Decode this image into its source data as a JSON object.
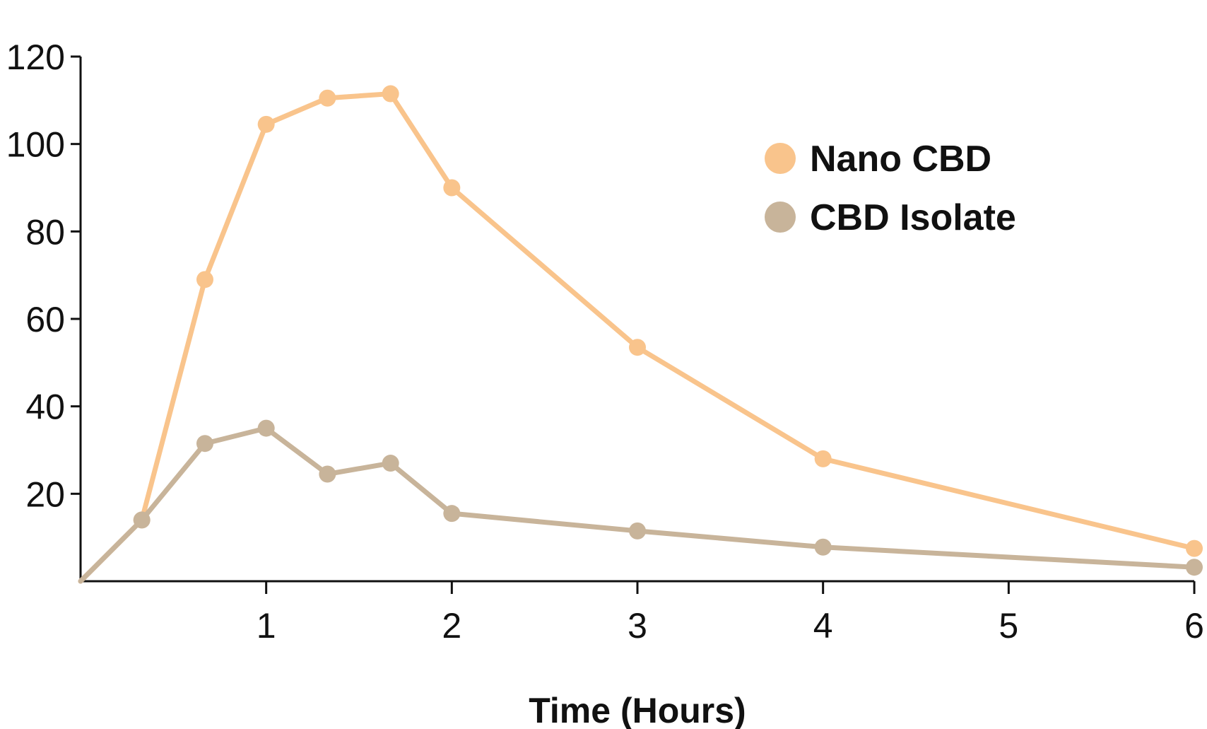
{
  "chart_data": {
    "type": "line",
    "title": "",
    "xlabel": "Time (Hours)",
    "ylabel": "",
    "xlim": [
      0,
      6
    ],
    "ylim": [
      0,
      120
    ],
    "x_ticks": [
      1,
      2,
      3,
      4,
      5,
      6
    ],
    "y_ticks": [
      20,
      40,
      60,
      80,
      100,
      120
    ],
    "grid": false,
    "legend_position": "top-right",
    "series": [
      {
        "name": "Nano CBD",
        "color": "#f9c48c",
        "x": [
          0,
          0.33,
          0.67,
          1,
          1.33,
          1.67,
          2,
          3,
          4,
          6
        ],
        "y": [
          0,
          14,
          69,
          104.5,
          110.5,
          111.5,
          90,
          53.5,
          28,
          7.5
        ]
      },
      {
        "name": "CBD Isolate",
        "color": "#c8b49a",
        "x": [
          0,
          0.33,
          0.67,
          1,
          1.33,
          1.67,
          2,
          3,
          4,
          6
        ],
        "y": [
          0,
          14,
          31.5,
          35,
          24.5,
          27,
          15.5,
          11.5,
          7.8,
          3.2
        ]
      }
    ]
  }
}
